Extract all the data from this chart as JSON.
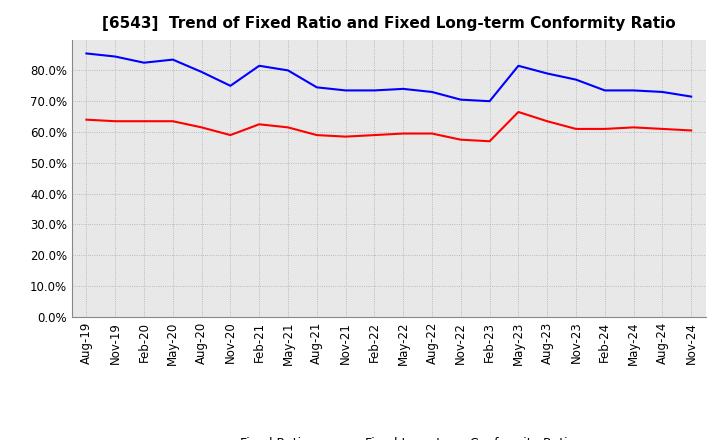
{
  "title": "[6543]  Trend of Fixed Ratio and Fixed Long-term Conformity Ratio",
  "x_labels": [
    "Aug-19",
    "Nov-19",
    "Feb-20",
    "May-20",
    "Aug-20",
    "Nov-20",
    "Feb-21",
    "May-21",
    "Aug-21",
    "Nov-21",
    "Feb-22",
    "May-22",
    "Aug-22",
    "Nov-22",
    "Feb-23",
    "May-23",
    "Aug-23",
    "Nov-23",
    "Feb-24",
    "May-24",
    "Aug-24",
    "Nov-24"
  ],
  "fixed_ratio": [
    85.5,
    84.5,
    82.5,
    83.5,
    79.5,
    75.0,
    81.5,
    80.0,
    74.5,
    73.5,
    73.5,
    74.0,
    73.0,
    70.5,
    70.0,
    81.5,
    79.0,
    77.0,
    73.5,
    73.5,
    73.0,
    71.5
  ],
  "fixed_lt_ratio": [
    64.0,
    63.5,
    63.5,
    63.5,
    61.5,
    59.0,
    62.5,
    61.5,
    59.0,
    58.5,
    59.0,
    59.5,
    59.5,
    57.5,
    57.0,
    66.5,
    63.5,
    61.0,
    61.0,
    61.5,
    61.0,
    60.5
  ],
  "ylim": [
    0,
    90
  ],
  "yticks": [
    0,
    10,
    20,
    30,
    40,
    50,
    60,
    70,
    80
  ],
  "fixed_ratio_color": "#0000ff",
  "fixed_lt_ratio_color": "#ff0000",
  "background_color": "#ffffff",
  "plot_bg_color": "#e8e8e8",
  "grid_color": "#aaaaaa",
  "line_width": 1.5,
  "legend_fixed_ratio": "Fixed Ratio",
  "legend_fixed_lt_ratio": "Fixed Long-term Conformity Ratio",
  "title_fontsize": 11,
  "tick_fontsize": 8.5
}
